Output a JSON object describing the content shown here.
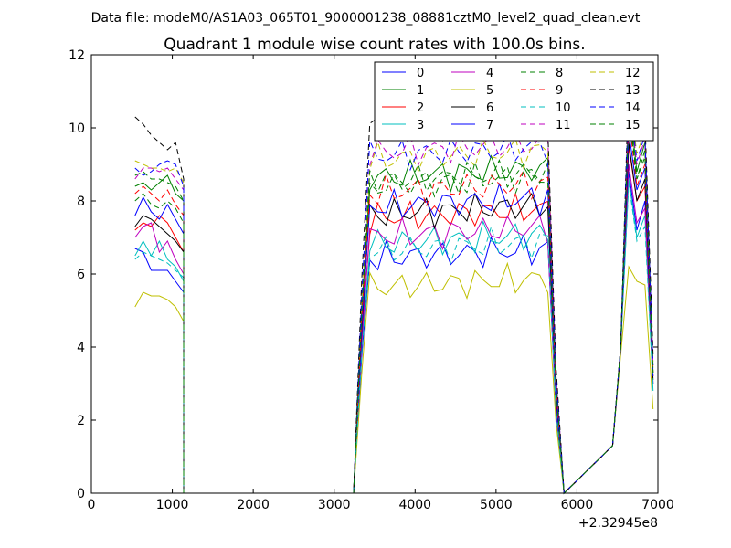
{
  "chart_data": {
    "type": "line",
    "suptitle": "Data file: modeM0/AS1A03_065T01_9000001238_08881cztM0_level2_quad_clean.evt",
    "title": "Quadrant 1 module wise count rates with 100.0s bins.",
    "xlabel": "",
    "ylabel": "",
    "x_offset_label": "+2.32945e8",
    "xlim": [
      0,
      7000
    ],
    "ylim": [
      0,
      12
    ],
    "xticks": [
      0,
      1000,
      2000,
      3000,
      4000,
      5000,
      6000,
      7000
    ],
    "yticks": [
      0,
      2,
      4,
      6,
      8,
      10,
      12
    ],
    "xtick_labels": [
      "0",
      "1000",
      "2000",
      "3000",
      "4000",
      "5000",
      "6000",
      "7000"
    ],
    "ytick_labels": [
      "0",
      "2",
      "4",
      "6",
      "8",
      "10",
      "12"
    ],
    "grid": false,
    "legend_position": "top-right",
    "legend_columns": 4,
    "segments": [
      {
        "start": 540,
        "count": 7
      },
      {
        "start": 1140,
        "count": 21
      },
      {
        "start": 3240,
        "count": 26
      },
      {
        "start": 5840,
        "count": 1
      },
      {
        "start": 6440,
        "count": 6
      }
    ],
    "series": [
      {
        "name": "0",
        "color": "#0000ff",
        "style": "solid",
        "base": [
          6.7,
          6.6,
          6.1,
          6.1,
          6.1,
          5.8,
          5.5
        ],
        "mid": 6.4,
        "end": [
          1.3,
          4.0,
          8.8,
          7.2,
          8.0,
          3.0
        ]
      },
      {
        "name": "1",
        "color": "#008000",
        "style": "solid",
        "base": [
          8.4,
          8.5,
          8.3,
          8.5,
          8.7,
          8.2,
          8.0
        ],
        "mid": 8.6,
        "end": [
          1.3,
          4.0,
          10.8,
          8.8,
          9.6,
          3.3
        ]
      },
      {
        "name": "2",
        "color": "#ff0000",
        "style": "solid",
        "base": [
          7.2,
          7.4,
          7.3,
          7.6,
          7.4,
          7.0,
          6.6
        ],
        "mid": 7.5,
        "end": [
          1.3,
          4.0,
          9.5,
          8.0,
          8.4,
          3.2
        ]
      },
      {
        "name": "3",
        "color": "#00bfbf",
        "style": "solid",
        "base": [
          6.5,
          6.9,
          6.5,
          6.9,
          6.4,
          6.2,
          5.8
        ],
        "mid": 6.8,
        "end": [
          1.3,
          4.0,
          8.6,
          7.0,
          7.6,
          2.8
        ]
      },
      {
        "name": "4",
        "color": "#bf00bf",
        "style": "solid",
        "base": [
          7.0,
          7.3,
          7.4,
          6.6,
          6.9,
          6.4,
          6.0
        ],
        "mid": 7.0,
        "end": [
          1.3,
          4.0,
          9.0,
          7.4,
          7.8,
          3.0
        ]
      },
      {
        "name": "5",
        "color": "#bfbf00",
        "style": "solid",
        "base": [
          5.1,
          5.5,
          5.4,
          5.4,
          5.3,
          5.1,
          4.7
        ],
        "mid": 5.6,
        "end": [
          1.3,
          3.8,
          6.2,
          5.8,
          5.7,
          2.3
        ]
      },
      {
        "name": "6",
        "color": "#000000",
        "style": "solid",
        "base": [
          7.3,
          7.6,
          7.5,
          7.3,
          7.1,
          6.9,
          6.6
        ],
        "mid": 7.6,
        "end": [
          1.3,
          4.0,
          9.6,
          8.0,
          8.6,
          3.1
        ]
      },
      {
        "name": "7",
        "color": "#0000ff",
        "style": "solid",
        "base": [
          7.6,
          8.1,
          7.7,
          7.5,
          7.9,
          7.5,
          7.1
        ],
        "mid": 7.8,
        "end": [
          1.3,
          4.0,
          9.9,
          8.3,
          8.9,
          3.2
        ]
      },
      {
        "name": "8",
        "color": "#008000",
        "style": "dashed",
        "base": [
          8.7,
          8.8,
          8.6,
          8.6,
          8.5,
          8.4,
          8.0
        ],
        "mid": 8.5,
        "end": [
          1.3,
          4.0,
          10.6,
          8.6,
          9.4,
          3.4
        ]
      },
      {
        "name": "9",
        "color": "#ff0000",
        "style": "dashed",
        "base": [
          8.2,
          8.4,
          8.2,
          8.0,
          8.3,
          7.9,
          7.6
        ],
        "mid": 8.2,
        "end": [
          1.3,
          4.0,
          10.3,
          8.4,
          9.0,
          3.3
        ]
      },
      {
        "name": "10",
        "color": "#00bfbf",
        "style": "dashed",
        "base": [
          6.4,
          6.6,
          6.5,
          6.4,
          6.3,
          6.1,
          5.9
        ],
        "mid": 6.6,
        "end": [
          1.3,
          4.0,
          8.5,
          6.9,
          7.3,
          2.9
        ]
      },
      {
        "name": "11",
        "color": "#bf00bf",
        "style": "dashed",
        "base": [
          8.6,
          8.9,
          8.9,
          8.8,
          8.9,
          8.6,
          8.3
        ],
        "mid": 9.3,
        "end": [
          1.3,
          4.0,
          10.9,
          9.0,
          9.7,
          3.5
        ]
      },
      {
        "name": "12",
        "color": "#bfbf00",
        "style": "dashed",
        "base": [
          9.1,
          9.0,
          8.9,
          8.9,
          8.8,
          8.9,
          8.5
        ],
        "mid": 9.1,
        "end": [
          1.3,
          4.0,
          11.0,
          9.3,
          9.9,
          3.6
        ]
      },
      {
        "name": "13",
        "color": "#000000",
        "style": "dashed",
        "base": [
          10.3,
          10.1,
          9.8,
          9.6,
          9.4,
          9.6,
          8.6
        ],
        "mid": 10.0,
        "end": [
          1.3,
          4.0,
          11.4,
          9.9,
          10.2,
          3.8
        ]
      },
      {
        "name": "14",
        "color": "#0000ff",
        "style": "dashed",
        "base": [
          8.9,
          8.7,
          8.8,
          9.0,
          9.1,
          9.0,
          8.4
        ],
        "mid": 9.2,
        "end": [
          1.3,
          4.0,
          11.0,
          9.1,
          9.8,
          3.5
        ]
      },
      {
        "name": "15",
        "color": "#008000",
        "style": "dashed",
        "base": [
          8.0,
          8.2,
          7.9,
          7.8,
          8.0,
          7.8,
          7.4
        ],
        "mid": 8.4,
        "end": [
          1.3,
          4.0,
          10.4,
          8.6,
          9.2,
          3.3
        ]
      }
    ]
  }
}
